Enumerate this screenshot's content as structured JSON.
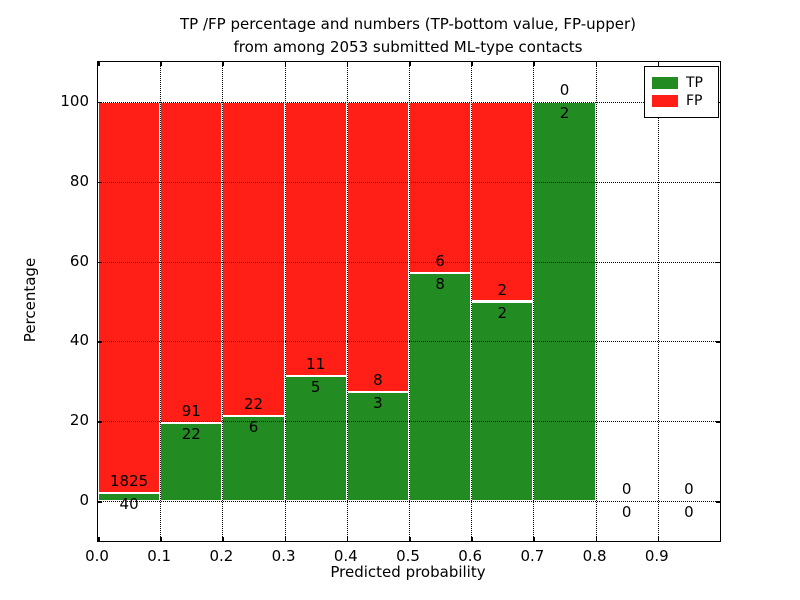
{
  "title": {
    "line1": "TP /FP percentage and numbers (TP-bottom value, FP-upper)",
    "line2": "from among 2053 submitted ML-type contacts"
  },
  "chart_data": {
    "type": "bar",
    "stacked": true,
    "total_contacts": 2053,
    "bin_edges": [
      0.0,
      0.1,
      0.2,
      0.3,
      0.4,
      0.5,
      0.6,
      0.7,
      0.8,
      0.9,
      1.0
    ],
    "series": [
      {
        "name": "TP",
        "color": "#228B22",
        "values": [
          40,
          22,
          6,
          5,
          3,
          8,
          2,
          2,
          0,
          0
        ]
      },
      {
        "name": "FP",
        "color": "#FF1F16",
        "values": [
          1825,
          91,
          22,
          11,
          8,
          6,
          2,
          0,
          0,
          0
        ]
      }
    ],
    "tp_percent_per_bin": [
      2.14,
      19.47,
      21.43,
      31.25,
      27.27,
      57.14,
      50.0,
      100.0,
      0,
      0
    ],
    "xlabel": "Predicted probability",
    "ylabel": "Percentage",
    "x_tick_labels": [
      "0.0",
      "0.1",
      "0.2",
      "0.3",
      "0.4",
      "0.5",
      "0.6",
      "0.7",
      "0.8",
      "0.9"
    ],
    "y_tick_values": [
      0,
      20,
      40,
      60,
      80,
      100
    ],
    "y_tick_labels": [
      "0",
      "20",
      "40",
      "60",
      "80",
      "100"
    ],
    "xlim": [
      0.0,
      1.0
    ],
    "ylim": [
      -10,
      110
    ],
    "grid": "dotted",
    "legend": {
      "position": "upper right",
      "entries": [
        "TP",
        "FP"
      ]
    }
  }
}
